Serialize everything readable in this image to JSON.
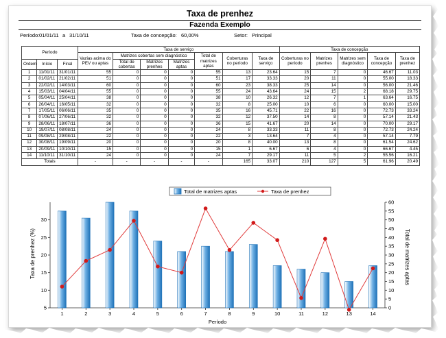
{
  "report": {
    "title": "Taxa de prenhez",
    "subtitle": "Fazenda Exemplo",
    "period_label": "Período:",
    "period_start": "01/01/11",
    "period_sep": "a",
    "period_end": "31/10/11",
    "conception_label": "Taxa de concepção:",
    "conception_value": "60,00%",
    "sector_label": "Setor:",
    "sector_value": "Principal"
  },
  "table": {
    "group_headers": {
      "periodo": "Período",
      "servico": "Taxa de serviço",
      "concepcao": "Taxa de concepção",
      "matrizes_sem_diag": "Matrizes cobertas sem diagnóstico"
    },
    "columns": [
      "Ordem",
      "Início",
      "Final",
      "Vazias acima do PEV ou aptas",
      "Total de cobertas",
      "Matrizes prenhes",
      "Matrizes aptas",
      "Total de matrizes aptas",
      "Coberturas no período",
      "Taxa de serviço",
      "Coberturas no período",
      "Matrizes prenhes",
      "Matrizes sem diagnóstico",
      "Taxa de concepção",
      "Taxa de prenhez"
    ],
    "rows": [
      [
        "1",
        "11/01/11",
        "31/01/11",
        "55",
        "0",
        "0",
        "0",
        "55",
        "13",
        "23.64",
        "15",
        "7",
        "0",
        "46.67",
        "11.03"
      ],
      [
        "2",
        "01/02/11",
        "21/02/11",
        "51",
        "0",
        "0",
        "0",
        "51",
        "17",
        "33.33",
        "20",
        "11",
        "0",
        "55.00",
        "18.33"
      ],
      [
        "3",
        "22/02/11",
        "14/03/11",
        "60",
        "0",
        "0",
        "0",
        "60",
        "23",
        "38.33",
        "25",
        "14",
        "0",
        "56.00",
        "21.46"
      ],
      [
        "4",
        "15/03/11",
        "04/04/11",
        "55",
        "0",
        "0",
        "0",
        "55",
        "24",
        "43.64",
        "24",
        "15",
        "2",
        "68.18",
        "29.75"
      ],
      [
        "5",
        "05/04/11",
        "25/04/11",
        "38",
        "0",
        "0",
        "0",
        "38",
        "10",
        "26.32",
        "12",
        "7",
        "1",
        "63.64",
        "16.75"
      ],
      [
        "6",
        "26/04/11",
        "16/05/11",
        "32",
        "0",
        "0",
        "0",
        "32",
        "8",
        "25.00",
        "10",
        "6",
        "0",
        "60.00",
        "15.00"
      ],
      [
        "7",
        "17/05/11",
        "06/06/11",
        "35",
        "0",
        "0",
        "0",
        "35",
        "16",
        "45.71",
        "22",
        "16",
        "0",
        "72.73",
        "33.24"
      ],
      [
        "8",
        "07/06/11",
        "27/06/11",
        "32",
        "0",
        "0",
        "0",
        "32",
        "12",
        "37.50",
        "14",
        "8",
        "0",
        "57.14",
        "21.43"
      ],
      [
        "9",
        "28/06/11",
        "18/07/11",
        "36",
        "0",
        "0",
        "0",
        "36",
        "15",
        "41.67",
        "20",
        "14",
        "0",
        "70.00",
        "29.17"
      ],
      [
        "10",
        "19/07/11",
        "08/08/11",
        "24",
        "0",
        "0",
        "0",
        "24",
        "8",
        "33.33",
        "11",
        "8",
        "0",
        "72.73",
        "24.24"
      ],
      [
        "11",
        "09/08/11",
        "29/08/11",
        "22",
        "0",
        "0",
        "0",
        "22",
        "3",
        "13.64",
        "7",
        "4",
        "0",
        "57.14",
        "7.79"
      ],
      [
        "12",
        "30/08/11",
        "19/09/11",
        "20",
        "0",
        "0",
        "0",
        "20",
        "8",
        "40.00",
        "13",
        "8",
        "0",
        "61.54",
        "24.62"
      ],
      [
        "13",
        "20/09/11",
        "10/10/11",
        "15",
        "0",
        "0",
        "0",
        "15",
        "1",
        "6.67",
        "6",
        "4",
        "0",
        "66.67",
        "4.45"
      ],
      [
        "14",
        "11/10/11",
        "31/10/11",
        "24",
        "0",
        "0",
        "0",
        "24",
        "7",
        "29.17",
        "11",
        "5",
        "2",
        "55.56",
        "16.21"
      ]
    ],
    "totals": [
      "Totais",
      "-",
      "-",
      "-",
      "-",
      "-",
      "165",
      "33.07",
      "210",
      "127",
      "5",
      "61.96",
      "20.49"
    ]
  },
  "chart_data": {
    "type": "bar",
    "categories": [
      "1",
      "2",
      "3",
      "4",
      "5",
      "6",
      "7",
      "8",
      "9",
      "10",
      "11",
      "12",
      "13",
      "14"
    ],
    "series": [
      {
        "name": "Total de matrizes aptas",
        "type": "bar",
        "axis": "right",
        "values": [
          55,
          51,
          60,
          55,
          38,
          32,
          35,
          32,
          36,
          24,
          22,
          20,
          15,
          24
        ]
      },
      {
        "name": "Taxa de prenhez",
        "type": "line",
        "axis": "left",
        "values": [
          11.03,
          18.33,
          21.46,
          29.75,
          16.75,
          15.0,
          33.24,
          21.43,
          29.17,
          24.24,
          7.79,
          24.62,
          4.45,
          16.21
        ]
      }
    ],
    "xlabel": "Período",
    "ylabel": "Taxa de prenhez (%)",
    "y2label": "Total de matrizes aptas",
    "ylim": [
      5,
      35
    ],
    "y2lim": [
      0,
      60
    ],
    "yticks": [
      "5",
      "10",
      "15",
      "20",
      "25",
      "30"
    ],
    "y2ticks": [
      "0",
      "5",
      "10",
      "15",
      "20",
      "25",
      "30",
      "35",
      "40",
      "45",
      "50",
      "55",
      "60"
    ],
    "legend_position": "top",
    "colors": {
      "bar_dark": "#1f72b8",
      "bar_light": "#ffffff",
      "line": "#e03a3a",
      "marker": "#d11a1a"
    }
  }
}
